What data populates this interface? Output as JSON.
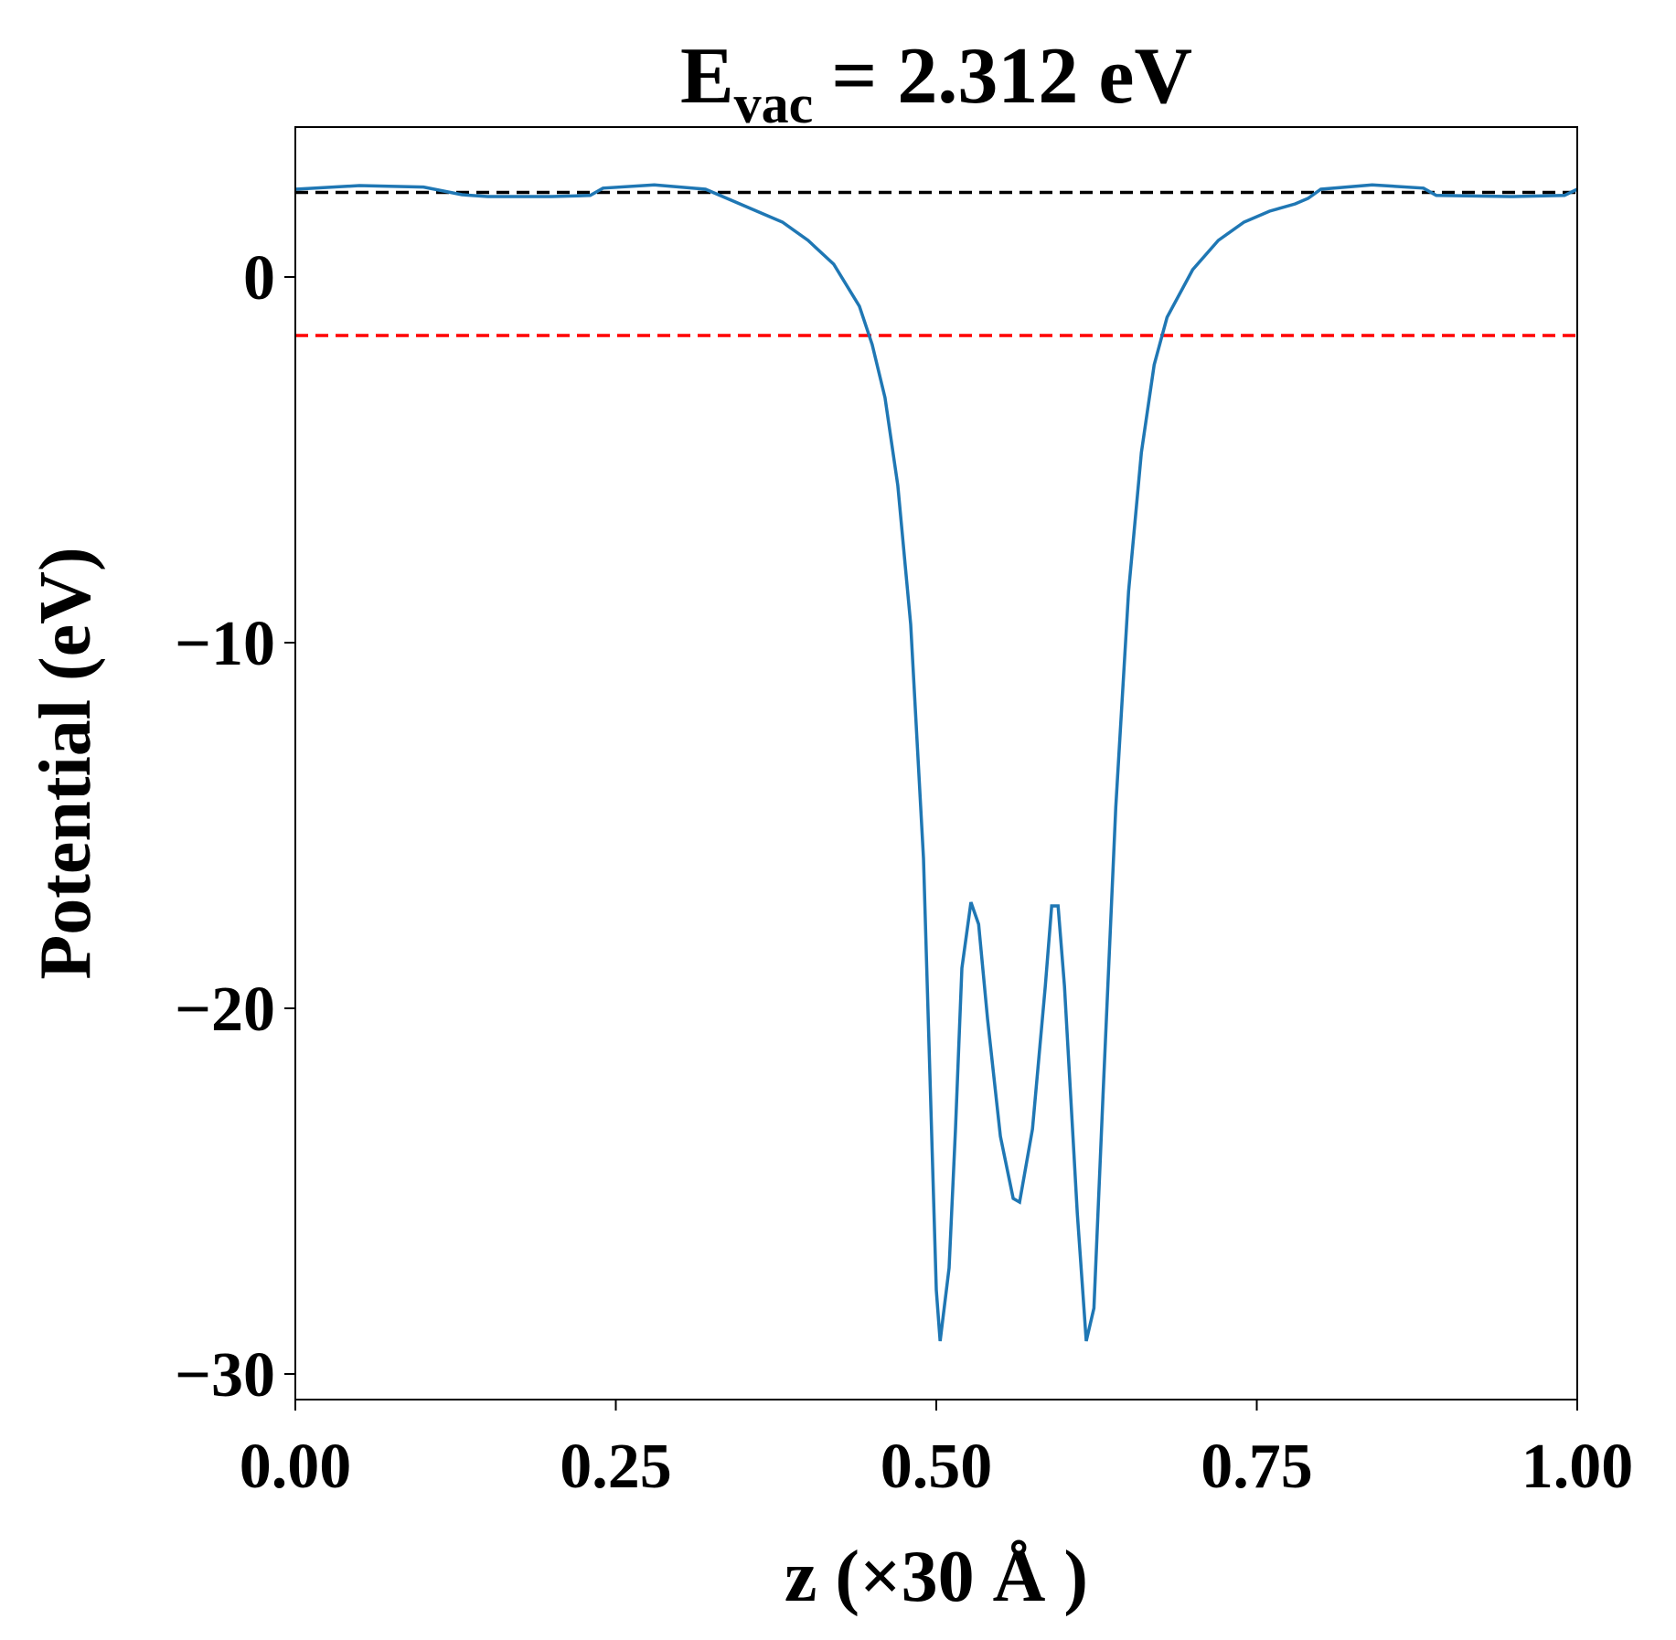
{
  "chart_data": {
    "type": "line",
    "title": {
      "main": "E",
      "sub": "vac",
      "rest": "= 2.312 eV"
    },
    "x_label": "z (×30 Å )",
    "y_label": "Potential (eV)",
    "xlim": [
      0,
      1
    ],
    "ylim": [
      -30.7,
      4.1
    ],
    "xticks": [
      {
        "value": 0,
        "label": "0.00"
      },
      {
        "value": 0.25,
        "label": "0.25"
      },
      {
        "value": 0.5,
        "label": "0.50"
      },
      {
        "value": 0.75,
        "label": "0.75"
      },
      {
        "value": 1,
        "label": "1.00"
      }
    ],
    "yticks": [
      0,
      {
        "value": -10,
        "label": "−10"
      },
      {
        "value": -20,
        "label": "−20"
      },
      {
        "value": -30,
        "label": "−30"
      }
    ],
    "hlines": [
      {
        "value": 2.312,
        "color": "#000000"
      },
      {
        "value": -1.6,
        "color": "#ff0000"
      }
    ],
    "x": [
      0,
      0.05,
      0.1,
      0.13,
      0.15,
      0.2,
      0.23,
      0.24,
      0.28,
      0.32,
      0.34,
      0.36,
      0.38,
      0.4,
      0.42,
      0.44,
      0.45,
      0.46,
      0.47,
      0.48,
      0.49,
      0.495,
      0.5,
      0.503,
      0.51,
      0.515,
      0.52,
      0.527,
      0.533,
      0.54,
      0.55,
      0.56,
      0.565,
      0.575,
      0.585,
      0.59,
      0.595,
      0.6,
      0.61,
      0.617,
      0.623,
      0.63,
      0.64,
      0.65,
      0.66,
      0.67,
      0.68,
      0.7,
      0.72,
      0.74,
      0.76,
      0.78,
      0.79,
      0.8,
      0.84,
      0.88,
      0.89,
      0.95,
      0.99,
      1
    ],
    "series": [
      {
        "color": "#1f77b4",
        "values": [
          2.4,
          2.5,
          2.46,
          2.25,
          2.2,
          2.2,
          2.23,
          2.43,
          2.52,
          2.4,
          2.1,
          1.8,
          1.5,
          1.0,
          0.35,
          -0.8,
          -1.85,
          -3.3,
          -5.7,
          -9.5,
          -15.9,
          -21.8,
          -27.7,
          -29.1,
          -27.1,
          -23.3,
          -18.9,
          -17.1,
          -17.7,
          -20.3,
          -23.5,
          -25.2,
          -25.3,
          -23.3,
          -19.4,
          -17.2,
          -17.2,
          -19.4,
          -25.6,
          -29.1,
          -28.2,
          -22.4,
          -14.5,
          -8.6,
          -4.8,
          -2.4,
          -1.1,
          0.2,
          1.0,
          1.5,
          1.8,
          2.0,
          2.15,
          2.4,
          2.52,
          2.43,
          2.23,
          2.2,
          2.23,
          2.4
        ]
      }
    ]
  }
}
